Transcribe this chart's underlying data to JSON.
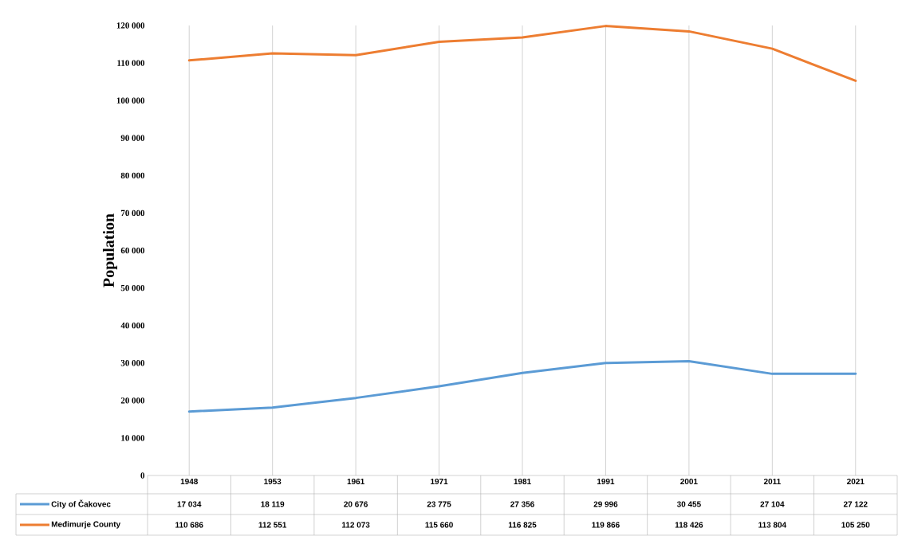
{
  "chart_data": {
    "type": "line",
    "ylabel": "Population",
    "categories": [
      "1948",
      "1953",
      "1961",
      "1971",
      "1981",
      "1991",
      "2001",
      "2011",
      "2021"
    ],
    "series": [
      {
        "name": "City of Čakovec",
        "color": "#5b9bd5",
        "values": [
          17034,
          18119,
          20676,
          23775,
          27356,
          29996,
          30455,
          27104,
          27122
        ],
        "value_labels": [
          "17 034",
          "18 119",
          "20 676",
          "23 775",
          "27 356",
          "29 996",
          "30 455",
          "27 104",
          "27 122"
        ]
      },
      {
        "name": "Međimurje County",
        "color": "#ed7d31",
        "values": [
          110686,
          112551,
          112073,
          115660,
          116825,
          119866,
          118426,
          113804,
          105250
        ],
        "value_labels": [
          "110 686",
          "112 551",
          "112 073",
          "115 660",
          "116 825",
          "119 866",
          "118 426",
          "113 804",
          "105 250"
        ]
      }
    ],
    "ylim": [
      0,
      120000
    ],
    "yticks": [
      0,
      {
        "value": 10000,
        "label": "10 000"
      },
      {
        "value": 20000,
        "label": "20 000"
      },
      {
        "value": 30000,
        "label": "30 000"
      },
      {
        "value": 40000,
        "label": "40 000"
      },
      {
        "value": 50000,
        "label": "50 000"
      },
      {
        "value": 60000,
        "label": "60 000"
      },
      {
        "value": 70000,
        "label": "70 000"
      },
      {
        "value": 80000,
        "label": "80 000"
      },
      {
        "value": 90000,
        "label": "90 000"
      },
      {
        "value": 100000,
        "label": "100 000"
      },
      {
        "value": 110000,
        "label": "110 000"
      },
      {
        "value": 120000,
        "label": "120 000"
      }
    ],
    "grid": "x",
    "legend": "bottom"
  }
}
